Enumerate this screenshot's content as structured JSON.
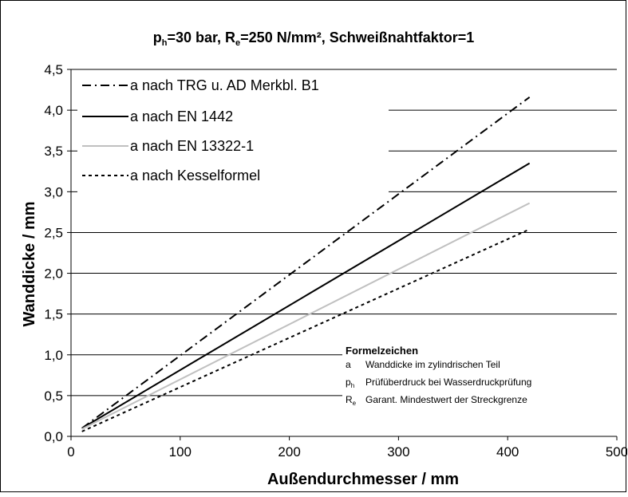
{
  "chart_data": {
    "type": "line",
    "title_main": {
      "p": "p",
      "p_sub": "h",
      "p_val": "=30 bar, ",
      "r": "R",
      "r_sub": "e",
      "r_val": "=250 N/mm², Schweißnahtfaktor=1"
    },
    "xlabel": "Außendurchmesser / mm",
    "ylabel": "Wanddicke / mm",
    "xlim": [
      0,
      500
    ],
    "ylim": [
      0,
      4.5
    ],
    "xticks": [
      0,
      100,
      200,
      300,
      400,
      500
    ],
    "xtick_labels": [
      "0",
      "100",
      "200",
      "300",
      "400",
      "500"
    ],
    "yticks": [
      0,
      0.5,
      1,
      1.5,
      2,
      2.5,
      3,
      3.5,
      4,
      4.5
    ],
    "ytick_labels": [
      "0,0",
      "0,5",
      "1,0",
      "1,5",
      "2,0",
      "2,5",
      "3,0",
      "3,5",
      "4,0",
      "4,5"
    ],
    "grid": "horizontal",
    "legend_position": "top-left",
    "series": [
      {
        "name": "a nach TRG u. AD Merkbl. B1",
        "style": "dashdot",
        "color": "#000000",
        "x": [
          10,
          420
        ],
        "y": [
          0.1,
          4.16
        ]
      },
      {
        "name": "a nach EN 1442",
        "style": "solid",
        "color": "#000000",
        "x": [
          10,
          420
        ],
        "y": [
          0.1,
          3.35
        ]
      },
      {
        "name": "a nach EN 13322-1",
        "style": "solid",
        "color": "#c0c0c0",
        "x": [
          10,
          420
        ],
        "y": [
          0.09,
          2.86
        ]
      },
      {
        "name": "a nach Kesselformel",
        "style": "dotted",
        "color": "#000000",
        "x": [
          10,
          420
        ],
        "y": [
          0.06,
          2.54
        ]
      }
    ],
    "annotation": {
      "heading": "Formelzeichen",
      "rows": [
        {
          "sym": "a",
          "sub": "",
          "text": "Wanddicke im zylindrischen Teil"
        },
        {
          "sym": "p",
          "sub": "h",
          "text": "Prüfüberdruck bei Wasserdruckprüfung"
        },
        {
          "sym": "R",
          "sub": "e",
          "text": "Garant. Mindestwert der Streckgrenze"
        }
      ]
    }
  }
}
